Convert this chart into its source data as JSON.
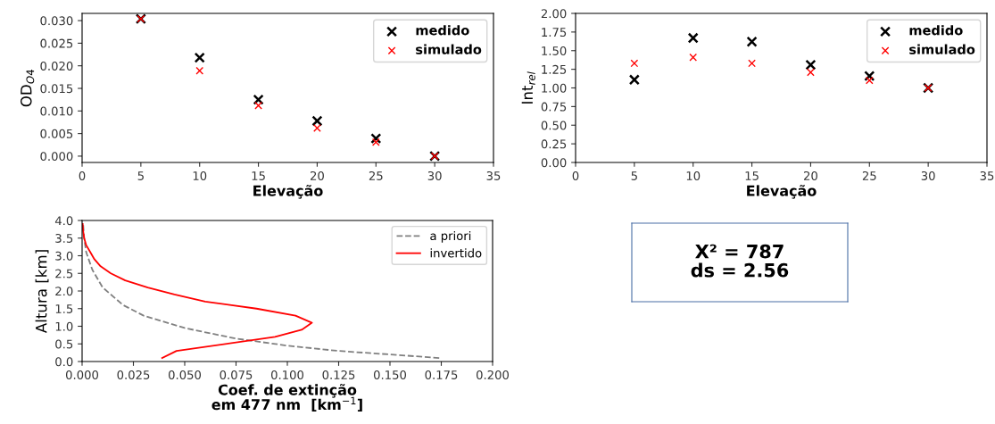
{
  "chart_data": [
    {
      "type": "scatter",
      "xlabel": "Elevação",
      "ylabel": "OD$_{O4}$",
      "xlim": [
        0,
        35
      ],
      "xticks": [
        0,
        5,
        10,
        15,
        20,
        25,
        30,
        35
      ],
      "ylim": [
        -0.0014,
        0.0316
      ],
      "yticks": [
        {
          "value": 0,
          "label": "0.000"
        },
        {
          "value": 0.005,
          "label": "0.005"
        },
        {
          "value": 0.01,
          "label": "0.010"
        },
        {
          "value": 0.015,
          "label": "0.015"
        },
        {
          "value": 0.02,
          "label": "0.020"
        },
        {
          "value": 0.025,
          "label": "0.025"
        },
        {
          "value": 0.03,
          "label": "0.030"
        }
      ],
      "x": [
        5,
        10,
        15,
        20,
        25,
        30
      ],
      "marker": "cross",
      "legend": "top right",
      "grid": false,
      "series": [
        {
          "name": "medido",
          "color": "#000000",
          "values": [
            0.0304,
            0.0218,
            0.0125,
            0.0078,
            0.0039,
            0.0
          ]
        },
        {
          "name": "simulado",
          "color": "#ff0000",
          "values": [
            0.0304,
            0.0189,
            0.0112,
            0.0062,
            0.0031,
            0.0
          ]
        }
      ]
    },
    {
      "type": "scatter",
      "xlabel": "Elevação",
      "ylabel": "Int$_{rel}$",
      "xlim": [
        0,
        35
      ],
      "xticks": [
        0,
        5,
        10,
        15,
        20,
        25,
        30,
        35
      ],
      "ylim": [
        0,
        2
      ],
      "yticks": [
        {
          "value": 0,
          "label": "0.00"
        },
        {
          "value": 0.25,
          "label": "0.25"
        },
        {
          "value": 0.5,
          "label": "0.50"
        },
        {
          "value": 0.75,
          "label": "0.75"
        },
        {
          "value": 1,
          "label": "1.00"
        },
        {
          "value": 1.25,
          "label": "1.25"
        },
        {
          "value": 1.5,
          "label": "1.50"
        },
        {
          "value": 1.75,
          "label": "1.75"
        },
        {
          "value": 2,
          "label": "2.00"
        }
      ],
      "x": [
        5,
        10,
        15,
        20,
        25,
        30
      ],
      "marker": "cross",
      "legend": "top right",
      "grid": false,
      "series": [
        {
          "name": "medido",
          "color": "#000000",
          "values": [
            1.11,
            1.67,
            1.62,
            1.31,
            1.16,
            1.0
          ]
        },
        {
          "name": "simulado",
          "color": "#ff0000",
          "values": [
            1.33,
            1.41,
            1.33,
            1.21,
            1.1,
            1.0
          ]
        }
      ]
    },
    {
      "type": "line",
      "xlabel": "Coef. de extinção\nem 477 nm  [km$^{−1}$]",
      "ylabel": "Altura [km]",
      "xlim": [
        0,
        0.2
      ],
      "xticks": [
        {
          "value": 0,
          "label": "0.000"
        },
        {
          "value": 0.025,
          "label": "0.025"
        },
        {
          "value": 0.05,
          "label": "0.050"
        },
        {
          "value": 0.075,
          "label": "0.075"
        },
        {
          "value": 0.1,
          "label": "0.100"
        },
        {
          "value": 0.125,
          "label": "0.125"
        },
        {
          "value": 0.15,
          "label": "0.150"
        },
        {
          "value": 0.175,
          "label": "0.175"
        },
        {
          "value": 0.2,
          "label": "0.200"
        }
      ],
      "ylim": [
        0,
        4
      ],
      "yticks": [
        {
          "value": 0,
          "label": "0.0"
        },
        {
          "value": 0.5,
          "label": "0.5"
        },
        {
          "value": 1,
          "label": "1.0"
        },
        {
          "value": 1.5,
          "label": "1.5"
        },
        {
          "value": 2,
          "label": "2.0"
        },
        {
          "value": 2.5,
          "label": "2.5"
        },
        {
          "value": 3,
          "label": "3.0"
        },
        {
          "value": 3.5,
          "label": "3.5"
        },
        {
          "value": 4,
          "label": "4.0"
        }
      ],
      "legend": "top right",
      "grid": false,
      "marker": "none",
      "series": [
        {
          "name": "a priori",
          "color": "#808080",
          "line_style": "dashed",
          "x": [
            0.174,
            0.15,
            0.125,
            0.1,
            0.075,
            0.05,
            0.03,
            0.02,
            0.01,
            0.005,
            0.002,
            0.001,
            0.0005
          ],
          "values": [
            0.1,
            0.2,
            0.3,
            0.45,
            0.65,
            0.95,
            1.3,
            1.6,
            2.1,
            2.6,
            3.1,
            3.5,
            3.9
          ]
        },
        {
          "name": "invertido",
          "color": "#ff0000",
          "line_style": "solid",
          "x": [
            0.039,
            0.046,
            0.094,
            0.107,
            0.112,
            0.104,
            0.085,
            0.06,
            0.045,
            0.032,
            0.021,
            0.014,
            0.009,
            0.006,
            0.004,
            0.002,
            0.001,
            0.0005,
            0.0003
          ],
          "values": [
            0.1,
            0.3,
            0.7,
            0.9,
            1.1,
            1.3,
            1.5,
            1.7,
            1.9,
            2.1,
            2.3,
            2.5,
            2.7,
            2.9,
            3.1,
            3.3,
            3.5,
            3.7,
            3.9
          ]
        }
      ]
    },
    {
      "type": "other",
      "annotations": [
        "X² = 787",
        "ds = 2.56"
      ]
    }
  ]
}
